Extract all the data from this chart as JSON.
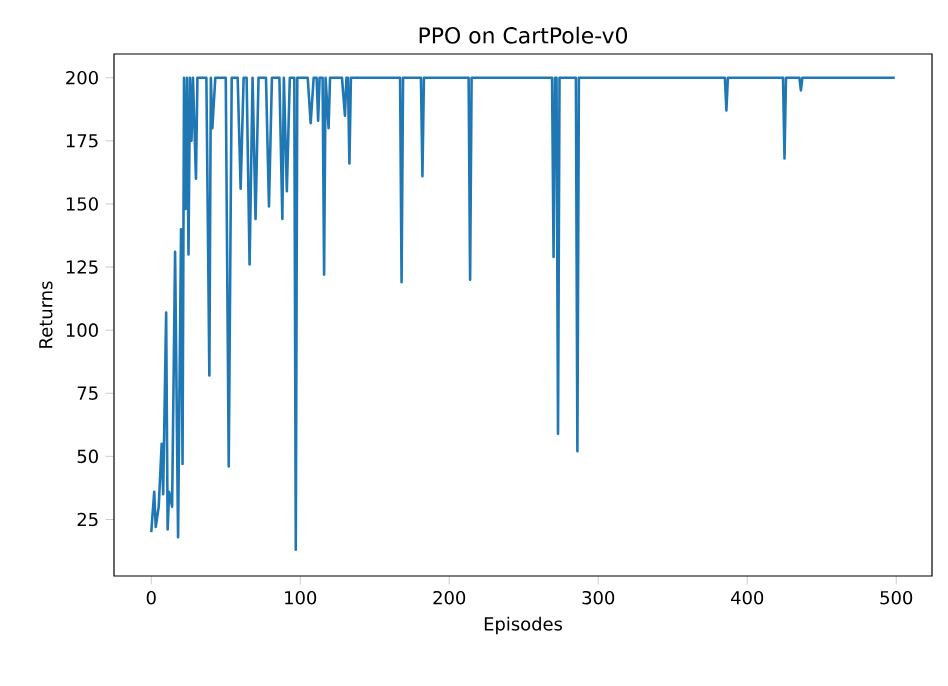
{
  "chart_data": {
    "type": "line",
    "title": "PPO on CartPole-v0",
    "xlabel": "Episodes",
    "ylabel": "Returns",
    "color": "#1f77b4",
    "x": [
      0,
      2,
      3,
      5,
      7,
      8,
      10,
      11,
      12,
      14,
      16,
      18,
      20,
      21,
      22,
      23,
      24,
      25,
      26,
      27,
      28,
      30,
      31,
      35,
      37,
      39,
      40,
      41,
      43,
      50,
      52,
      54,
      58,
      60,
      62,
      64,
      66,
      68,
      70,
      72,
      77,
      79,
      81,
      86,
      88,
      89,
      91,
      93,
      96,
      97,
      98,
      105,
      107,
      109,
      111,
      112,
      113,
      115,
      116,
      117,
      119,
      120,
      128,
      130,
      131,
      132,
      133,
      134,
      167,
      168,
      169,
      181,
      182,
      183,
      213,
      214,
      215,
      269,
      270,
      271,
      272,
      273,
      274,
      285,
      286,
      287,
      385,
      386,
      387,
      424,
      425,
      426,
      435,
      436,
      437,
      499
    ],
    "values": [
      20,
      36,
      22,
      30,
      55,
      35,
      107,
      21,
      36,
      30,
      131,
      18,
      140,
      47,
      200,
      148,
      200,
      130,
      200,
      175,
      200,
      160,
      200,
      200,
      200,
      82,
      200,
      180,
      200,
      200,
      46,
      200,
      200,
      156,
      200,
      200,
      126,
      200,
      144,
      200,
      200,
      149,
      200,
      200,
      144,
      200,
      155,
      200,
      200,
      13,
      200,
      200,
      182,
      200,
      200,
      183,
      200,
      200,
      122,
      200,
      180,
      200,
      200,
      185,
      200,
      200,
      166,
      200,
      200,
      119,
      200,
      200,
      161,
      200,
      200,
      120,
      200,
      200,
      129,
      200,
      200,
      59,
      200,
      200,
      52,
      200,
      200,
      187,
      200,
      200,
      168,
      200,
      200,
      195,
      200,
      200
    ],
    "xlim": [
      -25,
      524
    ],
    "ylim": [
      2.6,
      209.4
    ],
    "xticks": [
      0,
      100,
      200,
      300,
      400,
      500
    ],
    "yticks": [
      25,
      50,
      75,
      100,
      125,
      150,
      175,
      200
    ]
  }
}
